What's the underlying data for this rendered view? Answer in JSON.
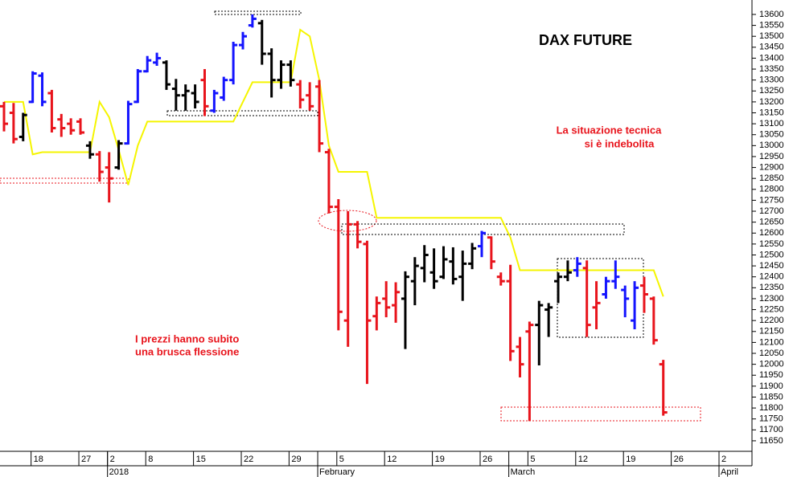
{
  "chart_data": {
    "type": "ohlc",
    "title": "DAX FUTURE",
    "annotations": [
      "La situazione tecnica",
      "si è indebolita",
      "I prezzi hanno subito",
      "una brusca flessione"
    ],
    "categories": [
      null,
      null,
      null,
      "18",
      null,
      null,
      null,
      null,
      "27",
      null,
      null,
      "2",
      null,
      null,
      null,
      "8",
      null,
      null,
      null,
      null,
      "15",
      null,
      null,
      null,
      null,
      "22",
      null,
      null,
      null,
      null,
      "29",
      null,
      null,
      null,
      null,
      "5",
      null,
      null,
      null,
      null,
      "12",
      null,
      null,
      null,
      null,
      "19",
      null,
      null,
      null,
      null,
      "26",
      null,
      null,
      null,
      null,
      "5",
      null,
      null,
      null,
      null,
      "12",
      null,
      null,
      null,
      null,
      "19",
      null,
      null,
      null,
      null,
      "26",
      null,
      null,
      null,
      null,
      "2",
      null,
      null
    ],
    "months": [
      null,
      null,
      null,
      null,
      null,
      null,
      null,
      null,
      null,
      null,
      null,
      "2018",
      null,
      null,
      null,
      null,
      null,
      null,
      null,
      null,
      null,
      null,
      null,
      null,
      null,
      null,
      null,
      null,
      null,
      null,
      null,
      null,
      null,
      "February",
      null,
      null,
      null,
      null,
      null,
      null,
      null,
      null,
      null,
      null,
      null,
      null,
      null,
      null,
      null,
      null,
      null,
      null,
      null,
      "March",
      null,
      null,
      null,
      null,
      null,
      null,
      null,
      null,
      null,
      null,
      null,
      null,
      null,
      null,
      null,
      null,
      null,
      null,
      null,
      null,
      null,
      "April",
      null,
      null
    ],
    "open": [
      13180,
      13150,
      13040,
      13200,
      13320,
      13240,
      13120,
      13100,
      13110,
      13000,
      12960,
      12900,
      12900,
      13010,
      13200,
      13340,
      13380,
      13380,
      13260,
      13230,
      13240,
      13300,
      13160,
      13220,
      13300,
      13460,
      13550,
      13560,
      13420,
      13300,
      13370,
      13280,
      13230,
      13270,
      12970,
      12720,
      12200,
      12640,
      12550,
      12220,
      12300,
      12270,
      12300,
      12380,
      12440,
      12420,
      12400,
      12470,
      12400,
      12460,
      12540,
      12580,
      12400,
      12380,
      12080,
      12150,
      12180,
      12250,
      12380,
      12400,
      12430,
      12440,
      12260,
      12320,
      12380,
      12340,
      12200,
      12360,
      12300,
      12000,
      null,
      null,
      null,
      null,
      null,
      null,
      null,
      null
    ],
    "high": [
      13200,
      13195,
      13150,
      13340,
      13335,
      13255,
      13145,
      13125,
      13125,
      13020,
      12975,
      12970,
      13025,
      13205,
      13350,
      13410,
      13425,
      13390,
      13305,
      13280,
      13280,
      13350,
      13255,
      13315,
      13475,
      13520,
      13600,
      13575,
      13445,
      13390,
      13390,
      13300,
      13290,
      13300,
      12985,
      12755,
      12700,
      12655,
      12565,
      12310,
      12380,
      12375,
      12425,
      12490,
      12545,
      12530,
      12540,
      12535,
      12520,
      12555,
      12610,
      12585,
      12420,
      12455,
      12125,
      12195,
      12290,
      12280,
      12420,
      12475,
      12490,
      12475,
      12380,
      12400,
      12475,
      12360,
      12380,
      12400,
      12310,
      12020,
      null,
      null,
      null,
      null,
      null,
      null,
      null,
      null
    ],
    "low": [
      13065,
      13010,
      13020,
      13195,
      13180,
      13060,
      13040,
      13050,
      13050,
      12940,
      12835,
      12740,
      12890,
      13005,
      13195,
      13335,
      13365,
      13255,
      13160,
      13160,
      13170,
      13135,
      13150,
      13205,
      13280,
      13440,
      13540,
      13370,
      13220,
      13260,
      13270,
      13170,
      13160,
      12970,
      12690,
      12155,
      12080,
      12530,
      11910,
      12155,
      12215,
      12190,
      12070,
      12270,
      12375,
      12345,
      12390,
      12365,
      12290,
      12435,
      12490,
      12435,
      12360,
      12015,
      11940,
      11740,
      11995,
      12125,
      12280,
      12380,
      12400,
      12125,
      12160,
      12300,
      12345,
      12215,
      12160,
      12235,
      12090,
      11765,
      null,
      null,
      null,
      null,
      null,
      null,
      null,
      null
    ],
    "close": [
      13100,
      13030,
      13140,
      13330,
      13200,
      13080,
      13080,
      13070,
      13060,
      12960,
      12880,
      12850,
      13010,
      13190,
      13340,
      13390,
      13400,
      13280,
      13230,
      13250,
      13200,
      13180,
      13240,
      13300,
      13460,
      13500,
      13580,
      13420,
      13300,
      13370,
      13300,
      13210,
      13180,
      13010,
      12720,
      12240,
      12640,
      12560,
      12200,
      12280,
      12260,
      12330,
      12400,
      12450,
      12500,
      12380,
      12480,
      12390,
      12460,
      12530,
      12600,
      12470,
      12380,
      12060,
      12000,
      12180,
      12270,
      12260,
      12400,
      12420,
      12460,
      12180,
      12280,
      12380,
      12400,
      12300,
      12350,
      12320,
      12110,
      11780,
      null,
      null,
      null,
      null,
      null,
      null,
      null,
      null
    ],
    "bar_colors": [
      "#e8141c",
      "#e8141c",
      "#000000",
      "#1414ff",
      "#1414ff",
      "#e8141c",
      "#e8141c",
      "#e8141c",
      "#e8141c",
      "#000000",
      "#e8141c",
      "#e8141c",
      "#000000",
      "#1414ff",
      "#1414ff",
      "#1414ff",
      "#1414ff",
      "#000000",
      "#000000",
      "#000000",
      "#000000",
      "#e8141c",
      "#1414ff",
      "#1414ff",
      "#1414ff",
      "#1414ff",
      "#1414ff",
      "#000000",
      "#000000",
      "#000000",
      "#000000",
      "#e8141c",
      "#e8141c",
      "#e8141c",
      "#e8141c",
      "#e8141c",
      "#e8141c",
      "#e8141c",
      "#e8141c",
      "#e8141c",
      "#e8141c",
      "#e8141c",
      "#000000",
      "#000000",
      "#000000",
      "#000000",
      "#000000",
      "#000000",
      "#000000",
      "#000000",
      "#1414ff",
      "#e8141c",
      "#e8141c",
      "#e8141c",
      "#e8141c",
      "#e8141c",
      "#000000",
      "#000000",
      "#000000",
      "#000000",
      "#1414ff",
      "#e8141c",
      "#e8141c",
      "#1414ff",
      "#1414ff",
      "#1414ff",
      "#1414ff",
      "#e8141c",
      "#e8141c",
      "#e8141c",
      null,
      null,
      null,
      null,
      null,
      null,
      null,
      null
    ],
    "lines": [
      {
        "color": "#f5f500",
        "values": [
          13200,
          13200,
          13200,
          12960,
          12970,
          12970,
          12970,
          12970,
          12970,
          12970,
          13200,
          13130,
          12980,
          12820,
          13000,
          13110,
          13110,
          13110,
          13110,
          13110,
          13110,
          13110,
          13110,
          13110,
          13110,
          13200,
          13290,
          13290,
          13290,
          13290,
          13290,
          13530,
          13500,
          13300,
          13000,
          12880,
          12880,
          12880,
          12880,
          12670,
          12670,
          12670,
          12670,
          12670,
          12670,
          12670,
          12670,
          12670,
          12670,
          12670,
          12670,
          12670,
          12670,
          12580,
          12430,
          12430,
          12430,
          12430,
          12430,
          12430,
          12430,
          12430,
          12430,
          12430,
          12430,
          12430,
          12430,
          12430,
          12430,
          12310,
          null,
          null,
          null,
          null,
          null,
          null,
          null,
          null
        ]
      }
    ],
    "ylim": [
      11602,
      13666
    ],
    "yticks": [
      11650,
      11700,
      11750,
      11800,
      11850,
      11900,
      11950,
      12000,
      12050,
      12100,
      12150,
      12200,
      12250,
      12300,
      12350,
      12400,
      12450,
      12500,
      12550,
      12600,
      12650,
      12700,
      12750,
      12800,
      12850,
      12900,
      12950,
      13000,
      13050,
      13100,
      13150,
      13200,
      13250,
      13300,
      13350,
      13400,
      13450,
      13500,
      13550,
      13600
    ],
    "grid": false
  }
}
